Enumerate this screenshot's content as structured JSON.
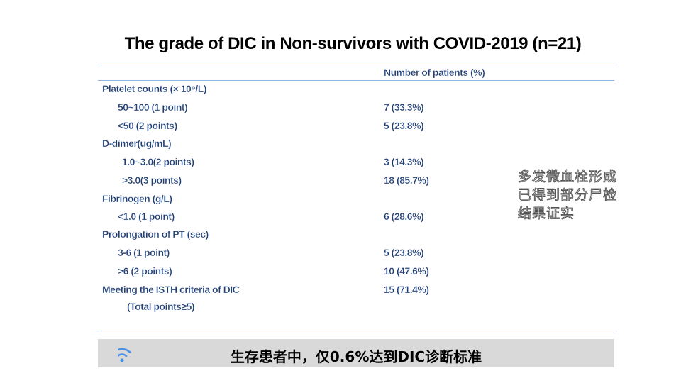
{
  "title": "The grade of DIC in Non-survivors with COVID-2019 (n=21)",
  "column_header": "Number of patients (%)",
  "rows": [
    {
      "label": "Platelet counts (× 10⁹/L)",
      "value": ""
    },
    {
      "label": "50~100 (1 point)",
      "value": "7 (33.3%)"
    },
    {
      "label": "<50   (2 points)",
      "value": "5 (23.8%)"
    },
    {
      "label": "D-dimer(ug/mL)",
      "value": ""
    },
    {
      "label": "1.0~3.0(2 points)",
      "value": "3 (14.3%)"
    },
    {
      "label": ">3.0(3 points)",
      "value": "18 (85.7%)"
    },
    {
      "label": "Fibrinogen (g/L)",
      "value": ""
    },
    {
      "label": "<1.0 (1 point)",
      "value": "6 (28.6%)"
    },
    {
      "label": "Prolongation of PT (sec)",
      "value": ""
    },
    {
      "label": "3-6 (1 point)",
      "value": "5 (23.8%)"
    },
    {
      "label": ">6 (2 points)",
      "value": "10 (47.6%)"
    },
    {
      "label": "Meeting the ISTH criteria of DIC",
      "value": "15 (71.4%)"
    },
    {
      "label": "(Total points≥5)",
      "value": ""
    }
  ],
  "side_note": "多发微血栓形成\n已得到部分尸检\n结果证实",
  "footer": {
    "text": "生存患者中，仅0.6%达到DIC诊断标准",
    "icon": "wifi-signal-icon"
  },
  "colors": {
    "table_text": "#1f3f78",
    "rule": "#8fb4e3",
    "footer_bg": "#d9d9d9",
    "icon": "#4a90e2"
  }
}
